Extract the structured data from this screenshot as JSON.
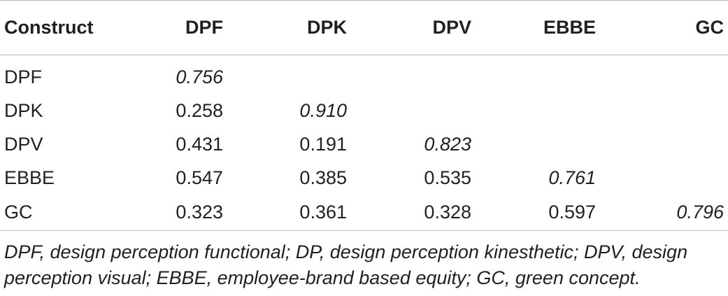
{
  "table": {
    "headers": [
      "Construct",
      "DPF",
      "DPK",
      "DPV",
      "EBBE",
      "GC"
    ],
    "rows": [
      {
        "label": "DPF",
        "cells": [
          "0.756",
          "",
          "",
          "",
          ""
        ]
      },
      {
        "label": "DPK",
        "cells": [
          "0.258",
          "0.910",
          "",
          "",
          ""
        ]
      },
      {
        "label": "DPV",
        "cells": [
          "0.431",
          "0.191",
          "0.823",
          "",
          ""
        ]
      },
      {
        "label": "EBBE",
        "cells": [
          "0.547",
          "0.385",
          "0.535",
          "0.761",
          ""
        ]
      },
      {
        "label": "GC",
        "cells": [
          "0.323",
          "0.361",
          "0.328",
          "0.597",
          "0.796"
        ]
      }
    ]
  },
  "footnote": "DPF, design perception functional; DP, design perception kinesthetic; DPV, design perception visual; EBBE, employee-brand based equity; GC, green concept."
}
